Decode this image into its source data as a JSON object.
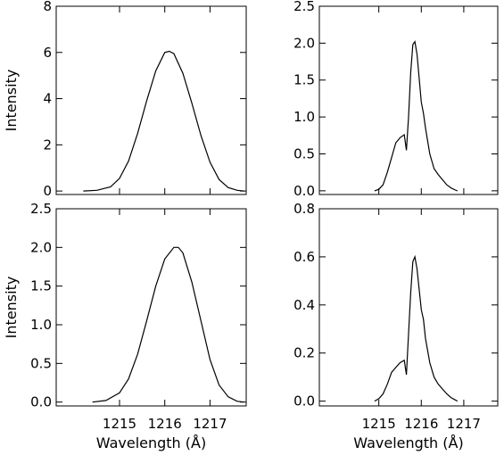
{
  "chart_data": [
    {
      "type": "line",
      "panel": "top-left",
      "ylabel": "Intensity",
      "xlabel": "",
      "xlim": [
        1213.6,
        1217.8
      ],
      "ylim": [
        -0.15,
        8.0
      ],
      "xticks": [
        1215,
        1216,
        1217
      ],
      "yticks": [
        0,
        2,
        4,
        6,
        8
      ],
      "ytick_labels": [
        "0",
        "2",
        "4",
        "6",
        "8"
      ],
      "show_x_tick_labels": false,
      "grid": false,
      "series": [
        {
          "x": [
            1214.2,
            1214.5,
            1214.8,
            1215.0,
            1215.2,
            1215.4,
            1215.6,
            1215.8,
            1216.0,
            1216.1,
            1216.2,
            1216.4,
            1216.6,
            1216.8,
            1217.0,
            1217.2,
            1217.4,
            1217.6,
            1217.75
          ],
          "values": [
            0.0,
            0.03,
            0.18,
            0.55,
            1.3,
            2.5,
            3.9,
            5.2,
            6.0,
            6.05,
            5.95,
            5.1,
            3.8,
            2.4,
            1.25,
            0.5,
            0.15,
            0.03,
            0.0
          ]
        }
      ]
    },
    {
      "type": "line",
      "panel": "top-right",
      "ylabel": "",
      "xlabel": "",
      "xlim": [
        1213.6,
        1217.8
      ],
      "ylim": [
        -0.05,
        2.5
      ],
      "xticks": [
        1215,
        1216,
        1217
      ],
      "yticks": [
        0.0,
        0.5,
        1.0,
        1.5,
        2.0,
        2.5
      ],
      "ytick_labels": [
        "0.0",
        "0.5",
        "1.0",
        "1.5",
        "2.0",
        "2.5"
      ],
      "show_x_tick_labels": false,
      "grid": false,
      "series": [
        {
          "x": [
            1214.9,
            1215.0,
            1215.1,
            1215.2,
            1215.3,
            1215.4,
            1215.5,
            1215.6,
            1215.65,
            1215.7,
            1215.75,
            1215.8,
            1215.85,
            1215.9,
            1216.0,
            1216.05,
            1216.1,
            1216.2,
            1216.3,
            1216.4,
            1216.5,
            1216.6,
            1216.7,
            1216.8,
            1216.85
          ],
          "values": [
            0.0,
            0.02,
            0.08,
            0.25,
            0.45,
            0.65,
            0.72,
            0.76,
            0.55,
            1.0,
            1.6,
            1.98,
            2.02,
            1.85,
            1.2,
            1.05,
            0.85,
            0.5,
            0.3,
            0.22,
            0.15,
            0.08,
            0.04,
            0.01,
            0.0
          ]
        }
      ]
    },
    {
      "type": "line",
      "panel": "bottom-left",
      "ylabel": "Intensity",
      "xlabel": "Wavelength (Å)",
      "xlim": [
        1213.6,
        1217.8
      ],
      "ylim": [
        -0.05,
        2.5
      ],
      "xticks": [
        1215,
        1216,
        1217
      ],
      "xtick_labels": [
        "1215",
        "1216",
        "1217"
      ],
      "yticks": [
        0.0,
        0.5,
        1.0,
        1.5,
        2.0,
        2.5
      ],
      "ytick_labels": [
        "0.0",
        "0.5",
        "1.0",
        "1.5",
        "2.0",
        "2.5"
      ],
      "show_x_tick_labels": true,
      "grid": false,
      "series": [
        {
          "x": [
            1214.4,
            1214.7,
            1215.0,
            1215.2,
            1215.4,
            1215.6,
            1215.8,
            1216.0,
            1216.2,
            1216.3,
            1216.4,
            1216.6,
            1216.8,
            1217.0,
            1217.2,
            1217.4,
            1217.6,
            1217.75
          ],
          "values": [
            0.0,
            0.02,
            0.12,
            0.3,
            0.62,
            1.05,
            1.5,
            1.85,
            2.0,
            2.0,
            1.93,
            1.55,
            1.05,
            0.55,
            0.22,
            0.07,
            0.01,
            0.0
          ]
        }
      ]
    },
    {
      "type": "line",
      "panel": "bottom-right",
      "ylabel": "",
      "xlabel": "Wavelength (Å)",
      "xlim": [
        1213.6,
        1217.8
      ],
      "ylim": [
        -0.02,
        0.8
      ],
      "xticks": [
        1215,
        1216,
        1217
      ],
      "xtick_labels": [
        "1215",
        "1216",
        "1217"
      ],
      "yticks": [
        0.0,
        0.2,
        0.4,
        0.6,
        0.8
      ],
      "ytick_labels": [
        "0.0",
        "0.2",
        "0.4",
        "0.6",
        "0.8"
      ],
      "show_x_tick_labels": true,
      "grid": false,
      "series": [
        {
          "x": [
            1214.9,
            1215.0,
            1215.1,
            1215.2,
            1215.3,
            1215.4,
            1215.5,
            1215.6,
            1215.65,
            1215.7,
            1215.75,
            1215.8,
            1215.85,
            1215.9,
            1216.0,
            1216.05,
            1216.1,
            1216.2,
            1216.3,
            1216.4,
            1216.5,
            1216.6,
            1216.7,
            1216.8,
            1216.85
          ],
          "values": [
            0.0,
            0.01,
            0.03,
            0.07,
            0.12,
            0.14,
            0.16,
            0.17,
            0.11,
            0.28,
            0.45,
            0.58,
            0.6,
            0.55,
            0.38,
            0.34,
            0.26,
            0.16,
            0.1,
            0.07,
            0.05,
            0.03,
            0.015,
            0.005,
            0.0
          ]
        }
      ]
    }
  ]
}
